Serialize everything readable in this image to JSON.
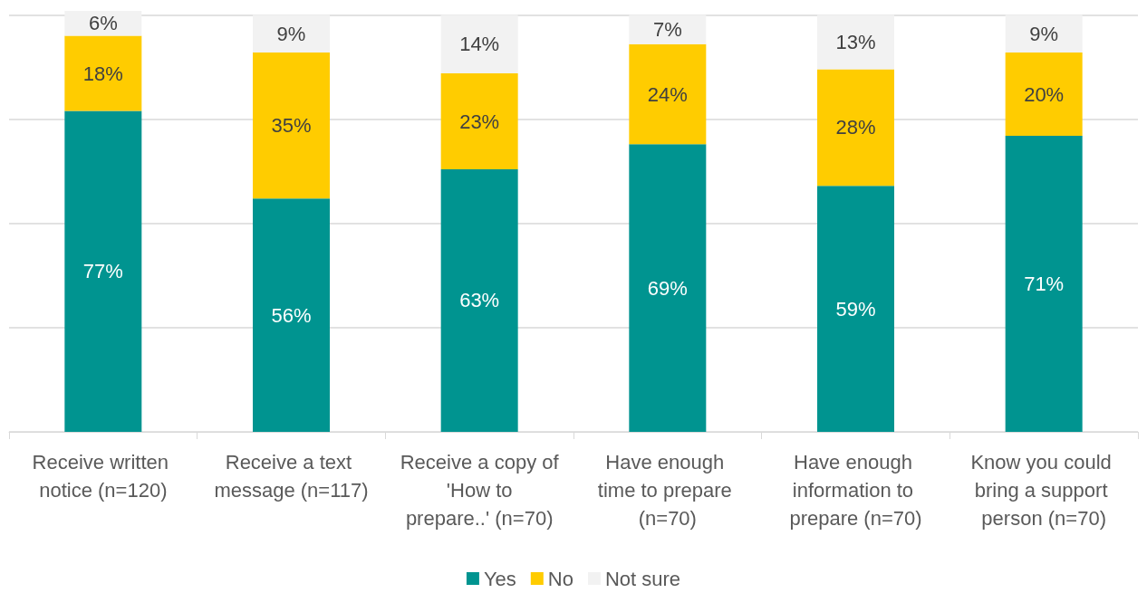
{
  "chart_data": {
    "type": "bar",
    "stacked": true,
    "categories": [
      "Receive written notice (n=120)",
      "Receive a text message (n=117)",
      "Receive a copy of 'How to prepare..' (n=70)",
      "Have enough time to prepare (n=70)",
      "Have enough information to prepare (n=70)",
      "Know you could bring a support person (n=70)"
    ],
    "series": [
      {
        "name": "Yes",
        "color": "#009490",
        "values": [
          77,
          56,
          63,
          69,
          59,
          71
        ],
        "value_labels": [
          "77%",
          "56%",
          "63%",
          "69%",
          "59%",
          "71%"
        ]
      },
      {
        "name": "No",
        "color": "#ffcc00",
        "values": [
          18,
          35,
          23,
          24,
          28,
          20
        ],
        "value_labels": [
          "18%",
          "35%",
          "23%",
          "24%",
          "28%",
          "20%"
        ]
      },
      {
        "name": "Not sure",
        "color": "#f2f2f2",
        "values": [
          6,
          9,
          14,
          7,
          13,
          9
        ],
        "value_labels": [
          "6%",
          "9%",
          "14%",
          "7%",
          "13%",
          "9%"
        ]
      }
    ],
    "ylim": [
      0,
      101
    ],
    "yticks": [
      {
        "value": 0,
        "label": null
      },
      {
        "value": 25,
        "label": null
      },
      {
        "value": 50,
        "label": null
      },
      {
        "value": 75,
        "label": null
      },
      {
        "value": 100,
        "label": null
      }
    ],
    "tick_labels": "x",
    "grid": "y",
    "legend": "bottom"
  }
}
